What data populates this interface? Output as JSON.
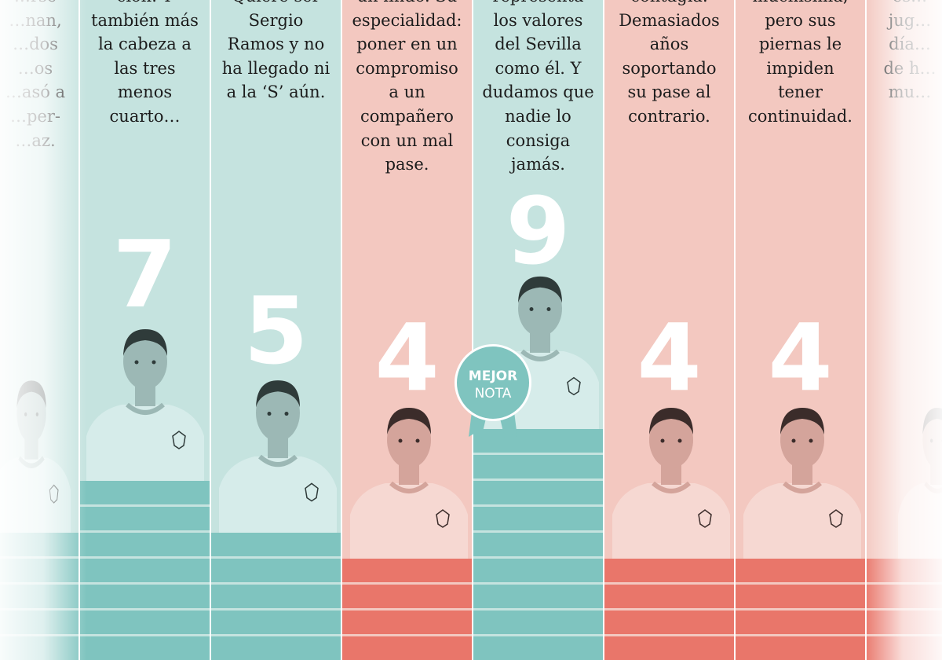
{
  "colors": {
    "teal_bg": "#c5e3df",
    "red_bg": "#f3c8c0",
    "teal_bar": "#7fc4bf",
    "red_bar": "#e9766a",
    "grade_text": "#ffffff"
  },
  "badge": {
    "line1": "MEJOR",
    "line2": "NOTA",
    "icon": "ribbon-badge-icon"
  },
  "columns": [
    {
      "id": "c0",
      "tone": "teal",
      "grade": "",
      "bar_level": 5,
      "blurb": [
        "…rse",
        "…nan,",
        "…dos",
        "…os",
        "…asó a",
        "…per-",
        "…az."
      ]
    },
    {
      "id": "c1",
      "tone": "teal",
      "grade": "7",
      "bar_level": 7,
      "blurb": [
        "ción. Y",
        "también más",
        "la cabeza a",
        "las tres",
        "menos",
        "cuarto…"
      ]
    },
    {
      "id": "c2",
      "tone": "teal",
      "grade": "5",
      "bar_level": 5,
      "blurb": [
        "Quiere ser",
        "Sergio",
        "Ramos y no",
        "ha llegado ni",
        "a la ‘S’ aún."
      ]
    },
    {
      "id": "c3",
      "tone": "red",
      "grade": "4",
      "bar_level": 4,
      "blurb": [
        "un lindo. Su",
        "especialidad:",
        "poner en un",
        "compromiso",
        "a un",
        "compañero",
        "con un mal",
        "pase."
      ]
    },
    {
      "id": "c4",
      "tone": "teal",
      "grade": "9",
      "bar_level": 9,
      "blurb": [
        "representa",
        "los valores",
        "del Sevilla",
        "como él. Y",
        "dudamos que",
        "nadie lo",
        "consiga",
        "jamás."
      ]
    },
    {
      "id": "c5",
      "tone": "red",
      "grade": "4",
      "bar_level": 4,
      "blurb": [
        "contagia.",
        "Demasiados",
        "años",
        "soportando",
        "su pase al",
        "contrario."
      ]
    },
    {
      "id": "c6",
      "tone": "red",
      "grade": "4",
      "bar_level": 4,
      "blurb": [
        "muchísima,",
        "pero sus",
        "piernas le",
        "impiden",
        "tener",
        "continuidad."
      ]
    },
    {
      "id": "c7",
      "tone": "red",
      "grade": "",
      "bar_level": 4,
      "blurb": [
        "es…",
        "jug…",
        "día…",
        "de h…",
        "mu…"
      ]
    }
  ]
}
